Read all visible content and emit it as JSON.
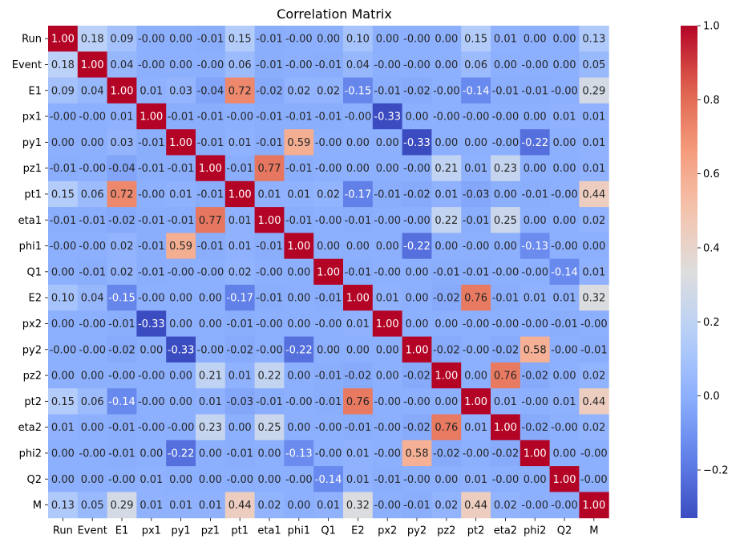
{
  "chart_data": {
    "type": "heatmap",
    "title": "Correlation Matrix",
    "xlabel": "",
    "ylabel": "",
    "colormap": "coolwarm",
    "vmin": -0.33,
    "vmax": 1.0,
    "grid": false,
    "legend": "colorbar-right",
    "colorbar_ticks": [
      "1.0",
      "0.8",
      "0.6",
      "0.4",
      "0.2",
      "0.0",
      "−0.2"
    ],
    "colorbar_tick_values": [
      1.0,
      0.8,
      0.6,
      0.4,
      0.2,
      0.0,
      -0.2
    ],
    "row_labels": [
      "Run",
      "Event",
      "E1",
      "px1",
      "py1",
      "pz1",
      "pt1",
      "eta1",
      "phi1",
      "Q1",
      "E2",
      "px2",
      "py2",
      "pz2",
      "pt2",
      "eta2",
      "phi2",
      "Q2",
      "M"
    ],
    "col_labels": [
      "Run",
      "Event",
      "E1",
      "px1",
      "py1",
      "pz1",
      "pt1",
      "eta1",
      "phi1",
      "Q1",
      "E2",
      "px2",
      "py2",
      "pz2",
      "pt2",
      "eta2",
      "phi2",
      "Q2",
      "M"
    ],
    "values": [
      [
        1.0,
        0.18,
        0.09,
        -0.0,
        0.0,
        -0.01,
        0.15,
        -0.01,
        -0.0,
        0.0,
        0.1,
        0.0,
        -0.0,
        0.0,
        0.15,
        0.01,
        0.0,
        0.0,
        0.13
      ],
      [
        0.18,
        1.0,
        0.04,
        -0.0,
        0.0,
        -0.0,
        0.06,
        -0.01,
        -0.0,
        -0.01,
        0.04,
        -0.0,
        -0.0,
        0.0,
        0.06,
        0.0,
        -0.0,
        0.0,
        0.05
      ],
      [
        0.09,
        0.04,
        1.0,
        0.01,
        0.03,
        -0.04,
        0.72,
        -0.02,
        0.02,
        0.02,
        -0.15,
        -0.01,
        -0.02,
        -0.0,
        -0.14,
        -0.01,
        -0.01,
        -0.0,
        0.29
      ],
      [
        -0.0,
        -0.0,
        0.01,
        1.0,
        -0.01,
        -0.01,
        -0.0,
        -0.01,
        -0.01,
        -0.01,
        -0.0,
        -0.33,
        0.0,
        -0.0,
        -0.0,
        -0.0,
        0.0,
        0.01,
        0.01
      ],
      [
        0.0,
        0.0,
        0.03,
        -0.01,
        1.0,
        -0.01,
        0.01,
        -0.01,
        0.59,
        -0.0,
        0.0,
        0.0,
        -0.33,
        0.0,
        0.0,
        -0.0,
        -0.22,
        0.0,
        0.01
      ],
      [
        -0.01,
        -0.0,
        -0.04,
        -0.01,
        -0.01,
        1.0,
        -0.01,
        0.77,
        -0.01,
        -0.0,
        0.0,
        0.0,
        -0.0,
        0.21,
        0.01,
        0.23,
        0.0,
        0.0,
        0.01
      ],
      [
        0.15,
        0.06,
        0.72,
        -0.0,
        0.01,
        -0.01,
        1.0,
        0.01,
        0.01,
        0.02,
        -0.17,
        -0.01,
        -0.02,
        0.01,
        -0.03,
        0.0,
        -0.01,
        -0.0,
        0.44
      ],
      [
        -0.01,
        -0.01,
        -0.02,
        -0.01,
        -0.01,
        0.77,
        0.01,
        1.0,
        -0.01,
        -0.0,
        -0.01,
        -0.0,
        -0.0,
        0.22,
        -0.01,
        0.25,
        0.0,
        0.0,
        0.02
      ],
      [
        -0.0,
        -0.0,
        0.02,
        -0.01,
        0.59,
        -0.01,
        0.01,
        -0.01,
        1.0,
        0.0,
        0.0,
        0.0,
        -0.22,
        0.0,
        -0.0,
        0.0,
        -0.13,
        -0.0,
        0.0
      ],
      [
        0.0,
        -0.01,
        0.02,
        -0.01,
        -0.0,
        -0.0,
        0.02,
        -0.0,
        0.0,
        1.0,
        -0.01,
        -0.0,
        0.0,
        -0.01,
        -0.01,
        -0.0,
        -0.0,
        -0.14,
        0.01
      ],
      [
        0.1,
        0.04,
        -0.15,
        -0.0,
        0.0,
        0.0,
        -0.17,
        -0.01,
        0.0,
        -0.01,
        1.0,
        0.01,
        0.0,
        -0.02,
        0.76,
        -0.01,
        0.01,
        0.01,
        0.32
      ],
      [
        0.0,
        -0.0,
        -0.01,
        -0.33,
        0.0,
        0.0,
        -0.01,
        -0.0,
        0.0,
        -0.0,
        0.01,
        1.0,
        0.0,
        0.0,
        -0.0,
        -0.0,
        -0.0,
        -0.01,
        -0.0
      ],
      [
        -0.0,
        -0.0,
        -0.02,
        0.0,
        -0.33,
        -0.0,
        -0.02,
        -0.0,
        -0.22,
        0.0,
        0.0,
        0.0,
        1.0,
        -0.02,
        -0.0,
        -0.02,
        0.58,
        -0.0,
        -0.01
      ],
      [
        0.0,
        0.0,
        -0.0,
        -0.0,
        0.0,
        0.21,
        0.01,
        0.22,
        0.0,
        -0.01,
        -0.02,
        0.0,
        -0.02,
        1.0,
        0.0,
        0.76,
        -0.02,
        0.0,
        0.02
      ],
      [
        0.15,
        0.06,
        -0.14,
        -0.0,
        0.0,
        0.01,
        -0.03,
        -0.01,
        -0.0,
        -0.01,
        0.76,
        -0.0,
        -0.0,
        0.0,
        1.0,
        0.01,
        -0.0,
        0.01,
        0.44
      ],
      [
        0.01,
        0.0,
        -0.01,
        -0.0,
        -0.0,
        0.23,
        0.0,
        0.25,
        0.0,
        -0.0,
        -0.01,
        -0.0,
        -0.02,
        0.76,
        0.01,
        1.0,
        -0.02,
        -0.0,
        0.02
      ],
      [
        0.0,
        -0.0,
        -0.01,
        0.0,
        -0.22,
        0.0,
        -0.01,
        0.0,
        -0.13,
        -0.0,
        0.01,
        -0.0,
        0.58,
        -0.02,
        -0.0,
        -0.02,
        1.0,
        0.0,
        -0.0
      ],
      [
        0.0,
        0.0,
        -0.0,
        0.01,
        0.0,
        0.0,
        -0.0,
        0.0,
        -0.0,
        -0.14,
        0.01,
        -0.01,
        -0.0,
        0.0,
        0.01,
        -0.0,
        0.0,
        1.0,
        -0.0
      ],
      [
        0.13,
        0.05,
        0.29,
        0.01,
        0.01,
        0.01,
        0.44,
        0.02,
        0.0,
        0.01,
        0.32,
        -0.0,
        -0.01,
        0.02,
        0.44,
        0.02,
        -0.0,
        -0.0,
        1.0
      ]
    ]
  }
}
